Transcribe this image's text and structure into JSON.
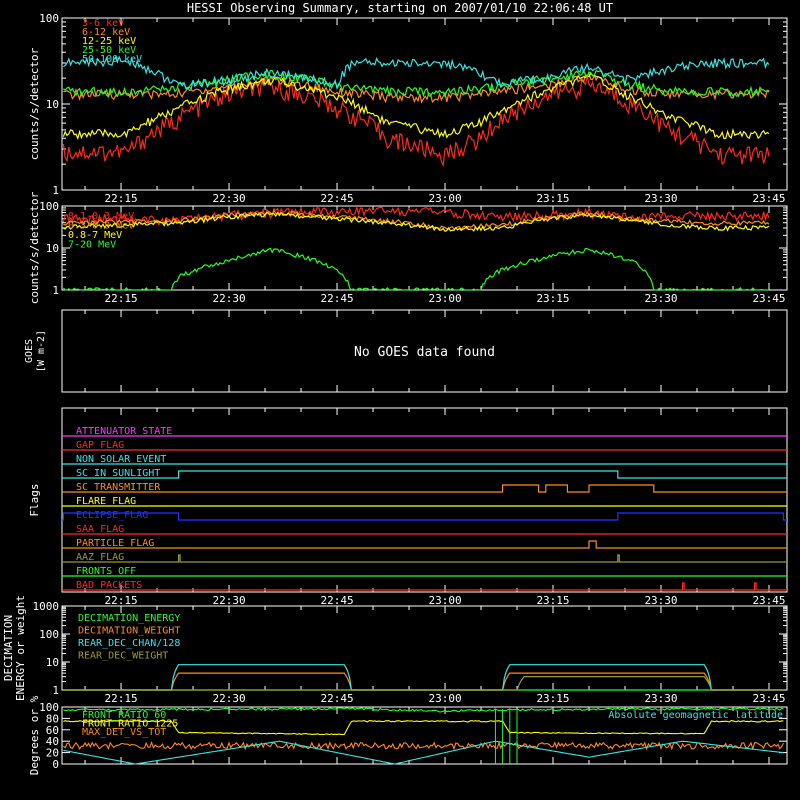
{
  "title": "HESSI Observing Summary, starting on 2007/01/10 22:06:48 UT",
  "colors": {
    "background": "#000000",
    "axes": "#ffffff",
    "red": "#ff2a1a",
    "orange": "#ff8c1a",
    "yellow": "#ffff00",
    "green": "#22ff22",
    "cyan": "#33e6e6",
    "magenta": "#ff33ff",
    "blue": "#2233ff",
    "olive": "#9a9a30"
  },
  "chart_data": [
    {
      "type": "line",
      "panel": "rate-low",
      "ylabel": "counts/s/detector",
      "yscale": "log",
      "ylim": [
        1,
        100
      ],
      "yticks": [
        "1",
        "10",
        "100"
      ],
      "x_ticks": [
        "22:15",
        "22:30",
        "22:45",
        "23:00",
        "23:15",
        "23:30",
        "23:45"
      ],
      "xlim_minutes_after_2200": [
        6.8,
        107.5
      ],
      "series": [
        {
          "name": "3-6 keV",
          "color": "red",
          "x": [
            "22:07",
            "22:16",
            "22:22",
            "22:30",
            "22:36",
            "22:45",
            "22:52",
            "23:00",
            "23:05",
            "23:15",
            "23:20",
            "23:25",
            "23:31",
            "23:38",
            "23:45"
          ],
          "values": [
            2.8,
            2.8,
            6,
            13,
            16,
            9,
            4,
            2.5,
            4,
            13,
            17,
            11,
            5,
            2.6,
            2.6
          ]
        },
        {
          "name": "6-12 keV",
          "color": "orange",
          "x": [
            "22:07",
            "22:16",
            "22:22",
            "22:30",
            "22:36",
            "22:45",
            "22:52",
            "23:00",
            "23:05",
            "23:15",
            "23:20",
            "23:25",
            "23:31",
            "23:38",
            "23:45"
          ],
          "values": [
            13,
            13,
            13,
            16,
            19,
            14,
            12,
            12,
            13,
            17,
            21,
            15,
            13,
            13,
            13
          ]
        },
        {
          "name": "12-25 keV",
          "color": "yellow",
          "x": [
            "22:07",
            "22:16",
            "22:22",
            "22:30",
            "22:36",
            "22:45",
            "22:52",
            "23:00",
            "23:05",
            "23:15",
            "23:20",
            "23:25",
            "23:31",
            "23:38",
            "23:45"
          ],
          "values": [
            4.5,
            4.5,
            8,
            15,
            19,
            12,
            6,
            4.5,
            6,
            15,
            21,
            13,
            7,
            4.5,
            4.5
          ]
        },
        {
          "name": "25-50 keV",
          "color": "green",
          "x": [
            "22:07",
            "22:16",
            "22:22",
            "22:30",
            "22:36",
            "22:45",
            "22:52",
            "23:00",
            "23:05",
            "23:15",
            "23:20",
            "23:25",
            "23:31",
            "23:38",
            "23:45"
          ],
          "values": [
            14,
            14,
            15,
            19,
            23,
            16,
            14,
            14,
            15,
            20,
            24,
            17,
            14,
            14,
            14
          ]
        },
        {
          "name": "50-100 keV",
          "color": "cyan",
          "x": [
            "22:07",
            "22:16",
            "22:23",
            "22:30",
            "22:36",
            "22:45",
            "22:47",
            "23:00",
            "23:08",
            "23:15",
            "23:20",
            "23:25",
            "23:36",
            "23:45"
          ],
          "values": [
            30,
            32,
            16,
            19,
            23,
            17,
            30,
            30,
            17,
            21,
            27,
            19,
            30,
            30
          ]
        }
      ]
    },
    {
      "type": "line",
      "panel": "rate-high",
      "ylabel": "counts/s/detector",
      "yscale": "log",
      "ylim": [
        1,
        100
      ],
      "yticks": [
        "1",
        "10",
        "100"
      ],
      "series": [
        {
          "name": "0.1-0.3 MeV",
          "color": "red",
          "x": [
            "22:07",
            "22:15",
            "22:23",
            "22:30",
            "22:36",
            "22:47",
            "22:55",
            "23:00",
            "23:08",
            "23:15",
            "23:20",
            "23:25",
            "23:36",
            "23:45"
          ],
          "values": [
            50,
            52,
            45,
            60,
            70,
            75,
            75,
            72,
            55,
            60,
            70,
            55,
            60,
            60
          ]
        },
        {
          "name": "0.3-0.8 MeV",
          "color": "orange",
          "x": [
            "22:07",
            "22:15",
            "22:23",
            "22:30",
            "22:36",
            "22:45",
            "22:55",
            "23:00",
            "23:08",
            "23:15",
            "23:20",
            "23:25",
            "23:36",
            "23:45"
          ],
          "values": [
            40,
            42,
            45,
            60,
            70,
            55,
            40,
            30,
            35,
            55,
            68,
            50,
            40,
            40
          ]
        },
        {
          "name": "0.8-7 MeV",
          "color": "yellow",
          "x": [
            "22:07",
            "22:15",
            "22:23",
            "22:30",
            "22:36",
            "22:45",
            "22:55",
            "23:00",
            "23:08",
            "23:15",
            "23:20",
            "23:25",
            "23:36",
            "23:45"
          ],
          "values": [
            32,
            35,
            40,
            55,
            65,
            50,
            35,
            28,
            30,
            50,
            62,
            45,
            30,
            30
          ]
        },
        {
          "name": "7-20 MeV",
          "color": "green",
          "x": [
            "22:07",
            "22:22",
            "22:23",
            "22:30",
            "22:36",
            "22:42",
            "22:46",
            "22:47",
            "23:05",
            "23:06",
            "23:12",
            "23:20",
            "23:27",
            "23:29",
            "23:45"
          ],
          "values": [
            1,
            1,
            2,
            5,
            9,
            5,
            2,
            1,
            1,
            2,
            5,
            9,
            4,
            1,
            1
          ]
        }
      ]
    },
    {
      "type": "line",
      "panel": "goes",
      "ylabel": "GOES",
      "ylabel_units": "W m-2",
      "message": "No GOES data found",
      "series": []
    },
    {
      "type": "line",
      "panel": "flags",
      "ylabel": "Flags",
      "series": [
        {
          "name": "ATTENUATOR_STATE",
          "color": "magenta",
          "on": []
        },
        {
          "name": "GAP_FLAG",
          "color": "red",
          "on": []
        },
        {
          "name": "NON_SOLAR_EVENT",
          "color": "cyan",
          "on": []
        },
        {
          "name": "SC_IN_SUNLIGHT",
          "color": "cyan",
          "on": [
            [
              "22:23",
              "23:24"
            ]
          ]
        },
        {
          "name": "SC_TRANSMITTER",
          "color": "orange",
          "on": [
            [
              "23:08",
              "23:13"
            ],
            [
              "23:14",
              "23:17"
            ],
            [
              "23:20",
              "23:29"
            ]
          ]
        },
        {
          "name": "FLARE_FLAG",
          "color": "yellow",
          "on": []
        },
        {
          "name": "ECLIPSE_FLAG",
          "color": "blue",
          "on": [
            [
              "22:07",
              "22:23"
            ],
            [
              "23:24",
              "23:47"
            ]
          ]
        },
        {
          "name": "SAA_FLAG",
          "color": "red",
          "on": []
        },
        {
          "name": "PARTICLE_FLAG",
          "color": "orange",
          "on": [
            [
              "23:20",
              "23:21"
            ]
          ]
        },
        {
          "name": "AAZ_FLAG",
          "color": "olive",
          "on": [
            [
              "22:23",
              "22:23"
            ],
            [
              "23:24",
              "23:24"
            ]
          ]
        },
        {
          "name": "FRONTS_OFF",
          "color": "green",
          "on": []
        },
        {
          "name": "BAD_PACKETS",
          "color": "red",
          "on": [
            [
              "23:33",
              "23:33"
            ],
            [
              "23:43",
              "23:43"
            ]
          ]
        }
      ]
    },
    {
      "type": "line",
      "panel": "decimation",
      "ylabel": "DECIMATION ENERGY or weight",
      "yscale": "log",
      "ylim": [
        1,
        1000
      ],
      "yticks": [
        "1",
        "10",
        "100",
        "1000"
      ],
      "series": [
        {
          "name": "DECIMATION_ENERGY",
          "color": "green",
          "x": [
            "22:07",
            "23:47"
          ],
          "values": [
            0,
            0
          ]
        },
        {
          "name": "DECIMATION_WEIGHT",
          "color": "orange",
          "x": [
            "22:07",
            "22:22",
            "22:23",
            "22:46",
            "22:47",
            "23:08",
            "23:09",
            "23:36",
            "23:37",
            "23:47"
          ],
          "values": [
            1,
            1,
            4,
            4,
            1,
            1,
            4,
            4,
            1,
            1
          ]
        },
        {
          "name": "REAR_DEC_CHAN/128",
          "color": "cyan",
          "x": [
            "22:07",
            "22:22",
            "22:23",
            "22:46",
            "22:47",
            "23:08",
            "23:09",
            "23:36",
            "23:37",
            "23:47"
          ],
          "values": [
            1,
            1,
            8,
            8,
            1,
            1,
            8,
            8,
            1,
            1
          ]
        },
        {
          "name": "REAR_DEC_WEIGHT",
          "color": "olive",
          "x": [
            "22:07",
            "23:10",
            "23:11",
            "23:36",
            "23:37",
            "23:47"
          ],
          "values": [
            1,
            1,
            3,
            3,
            1,
            1
          ]
        }
      ]
    },
    {
      "type": "line",
      "panel": "ratios",
      "ylabel": "Degrees or %",
      "ylim": [
        0,
        100
      ],
      "yticks": [
        "0",
        "20",
        "40",
        "60",
        "80",
        "100"
      ],
      "annotation": "Absolute geomagnetic latitude",
      "series": [
        {
          "name": "FRONT_RATIO_60",
          "color": "green",
          "x": [
            "22:07",
            "22:30",
            "22:47",
            "23:00",
            "23:08",
            "23:35",
            "23:47"
          ],
          "values": [
            95,
            96,
            97,
            93,
            95,
            97,
            96
          ]
        },
        {
          "name": "FRONT_RATIO_1225",
          "color": "yellow",
          "x": [
            "22:07",
            "22:22",
            "22:23",
            "22:46",
            "22:47",
            "23:08",
            "23:09",
            "23:36",
            "23:37",
            "23:47"
          ],
          "values": [
            75,
            75,
            55,
            52,
            75,
            75,
            55,
            53,
            75,
            75
          ]
        },
        {
          "name": "MAX_DET_VS_TOT",
          "color": "orange",
          "x": [
            "22:07",
            "23:47"
          ],
          "values": [
            32,
            32
          ]
        },
        {
          "name": "Absolute geomagnetic latitude",
          "color": "cyan",
          "x": [
            "22:07",
            "22:17",
            "22:37",
            "22:53",
            "23:07",
            "23:20",
            "23:33",
            "23:47"
          ],
          "values": [
            24,
            0,
            40,
            0,
            40,
            12,
            40,
            20
          ]
        }
      ]
    }
  ]
}
